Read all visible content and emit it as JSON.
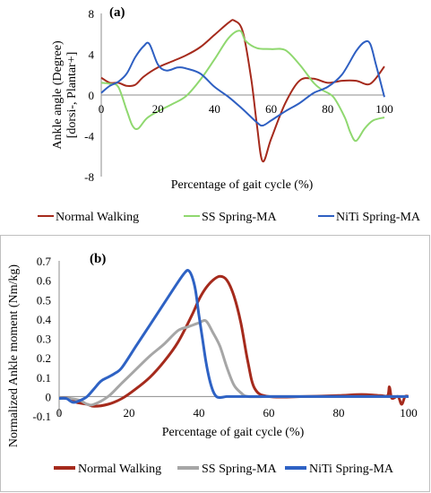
{
  "chart_data": [
    {
      "type": "line",
      "panel_label": "(a)",
      "xlabel": "Percentage of gait cycle (%)",
      "ylabel_line1": "Ankle angle (Degree)",
      "ylabel_line2": "[dorsi-, Plantar+]",
      "xlim": [
        0,
        100
      ],
      "ylim": [
        -8,
        8
      ],
      "xticks": [
        "0",
        "20",
        "40",
        "60",
        "80",
        "100"
      ],
      "yticks": [
        "-8",
        "-4",
        "0",
        "4",
        "8"
      ],
      "ytick_values": [
        -8,
        -4,
        0,
        4,
        8
      ],
      "grid": false,
      "legend_position": "bottom",
      "series": [
        {
          "name": "Normal Walking",
          "color": "#a52a1c",
          "x": [
            0,
            3,
            6,
            9,
            12,
            15,
            20,
            25,
            30,
            35,
            40,
            45,
            47,
            50,
            53,
            55,
            57,
            60,
            65,
            70,
            75,
            80,
            85,
            90,
            95,
            100
          ],
          "y": [
            1.7,
            1.2,
            1.2,
            0.9,
            1.0,
            1.8,
            2.7,
            3.3,
            3.9,
            4.7,
            5.9,
            7.1,
            7.3,
            6.2,
            1.5,
            -3.0,
            -6.5,
            -4.3,
            -0.8,
            1.4,
            1.6,
            1.2,
            1.4,
            1.4,
            1.1,
            2.8
          ]
        },
        {
          "name": "SS Spring-MA",
          "color": "#8fd86f",
          "x": [
            0,
            3,
            6,
            9,
            11,
            13,
            16,
            20,
            25,
            30,
            35,
            40,
            45,
            49,
            51,
            55,
            60,
            65,
            70,
            75,
            78,
            82,
            86,
            88,
            90,
            93,
            96,
            100
          ],
          "y": [
            1.2,
            1.1,
            0.8,
            -1.5,
            -3.0,
            -3.3,
            -2.3,
            -1.6,
            -0.9,
            -0.1,
            1.5,
            3.5,
            5.6,
            6.3,
            5.3,
            4.6,
            4.5,
            4.4,
            3.0,
            1.2,
            0.5,
            -0.2,
            -2.2,
            -3.7,
            -4.5,
            -3.3,
            -2.5,
            -2.2
          ]
        },
        {
          "name": "NiTi Spring-MA",
          "color": "#2e5fc2",
          "x": [
            0,
            3,
            6,
            9,
            12,
            15,
            17,
            20,
            23,
            27,
            30,
            35,
            40,
            45,
            50,
            55,
            57,
            60,
            65,
            70,
            75,
            80,
            85,
            90,
            93,
            95,
            97,
            100
          ],
          "y": [
            0.2,
            0.9,
            1.3,
            2.1,
            3.7,
            4.8,
            5.0,
            3.0,
            2.4,
            2.7,
            2.6,
            2.1,
            0.8,
            -0.2,
            -1.4,
            -2.7,
            -3.0,
            -2.5,
            -1.6,
            -0.8,
            0.2,
            0.8,
            2.0,
            4.3,
            5.2,
            5.0,
            3.0,
            -0.2
          ]
        }
      ]
    },
    {
      "type": "line",
      "panel_label": "(b)",
      "xlabel": "Percentage of gait cycle (%)",
      "ylabel": "Normalized Ankle moment (Nm/kg)",
      "xlim": [
        0,
        100
      ],
      "ylim": [
        -0.1,
        0.7
      ],
      "xticks": [
        "0",
        "20",
        "40",
        "60",
        "80",
        "100"
      ],
      "yticks": [
        "-0.1",
        "0",
        "0.1",
        "0.2",
        "0.3",
        "0.4",
        "0.5",
        "0.6",
        "0.7"
      ],
      "ytick_values": [
        -0.1,
        0,
        0.1,
        0.2,
        0.3,
        0.4,
        0.5,
        0.6,
        0.7
      ],
      "grid": false,
      "legend_position": "bottom",
      "series": [
        {
          "name": "Normal Walking",
          "color": "#a52a1c",
          "x": [
            0,
            3,
            5,
            8,
            10,
            14,
            18,
            22,
            26,
            30,
            34,
            38,
            40,
            42,
            44,
            46,
            48,
            50,
            52,
            54,
            56,
            60,
            70,
            80,
            85,
            88,
            92,
            94,
            94.5,
            95,
            95.5,
            97,
            98,
            99,
            100
          ],
          "y": [
            -0.01,
            -0.01,
            -0.03,
            -0.04,
            -0.05,
            -0.04,
            -0.01,
            0.04,
            0.1,
            0.18,
            0.28,
            0.42,
            0.5,
            0.56,
            0.6,
            0.62,
            0.6,
            0.52,
            0.38,
            0.18,
            0.04,
            0,
            0,
            0.005,
            0.01,
            0.01,
            0.005,
            0.005,
            0.05,
            0.0,
            -0.01,
            0,
            -0.04,
            0,
            0
          ]
        },
        {
          "name": "SS Spring-MA",
          "color": "#a6a6a6",
          "x": [
            0,
            3,
            6,
            8,
            10,
            14,
            18,
            22,
            26,
            30,
            34,
            37,
            40,
            42,
            44,
            46,
            48,
            50,
            52,
            54,
            60,
            70,
            80,
            90,
            100
          ],
          "y": [
            -0.01,
            -0.01,
            -0.02,
            -0.04,
            -0.04,
            0.0,
            0.07,
            0.14,
            0.21,
            0.27,
            0.34,
            0.36,
            0.38,
            0.39,
            0.33,
            0.26,
            0.15,
            0.06,
            0.02,
            0.0,
            0,
            0,
            0,
            0,
            0
          ]
        },
        {
          "name": "NiTi Spring-MA",
          "color": "#2e62c4",
          "x": [
            0,
            2,
            4,
            6,
            8,
            10,
            12,
            14,
            16,
            18,
            22,
            26,
            30,
            34,
            36,
            37,
            38,
            39,
            40,
            41,
            42,
            43,
            44,
            45,
            46,
            48,
            50,
            60,
            70,
            80,
            90,
            100
          ],
          "y": [
            -0.01,
            -0.01,
            -0.03,
            -0.02,
            0.0,
            0.04,
            0.08,
            0.1,
            0.12,
            0.15,
            0.26,
            0.37,
            0.48,
            0.59,
            0.64,
            0.65,
            0.62,
            0.55,
            0.42,
            0.3,
            0.18,
            0.09,
            0.03,
            0.0,
            -0.005,
            0,
            0,
            0,
            0,
            0,
            0,
            0
          ]
        }
      ]
    }
  ]
}
